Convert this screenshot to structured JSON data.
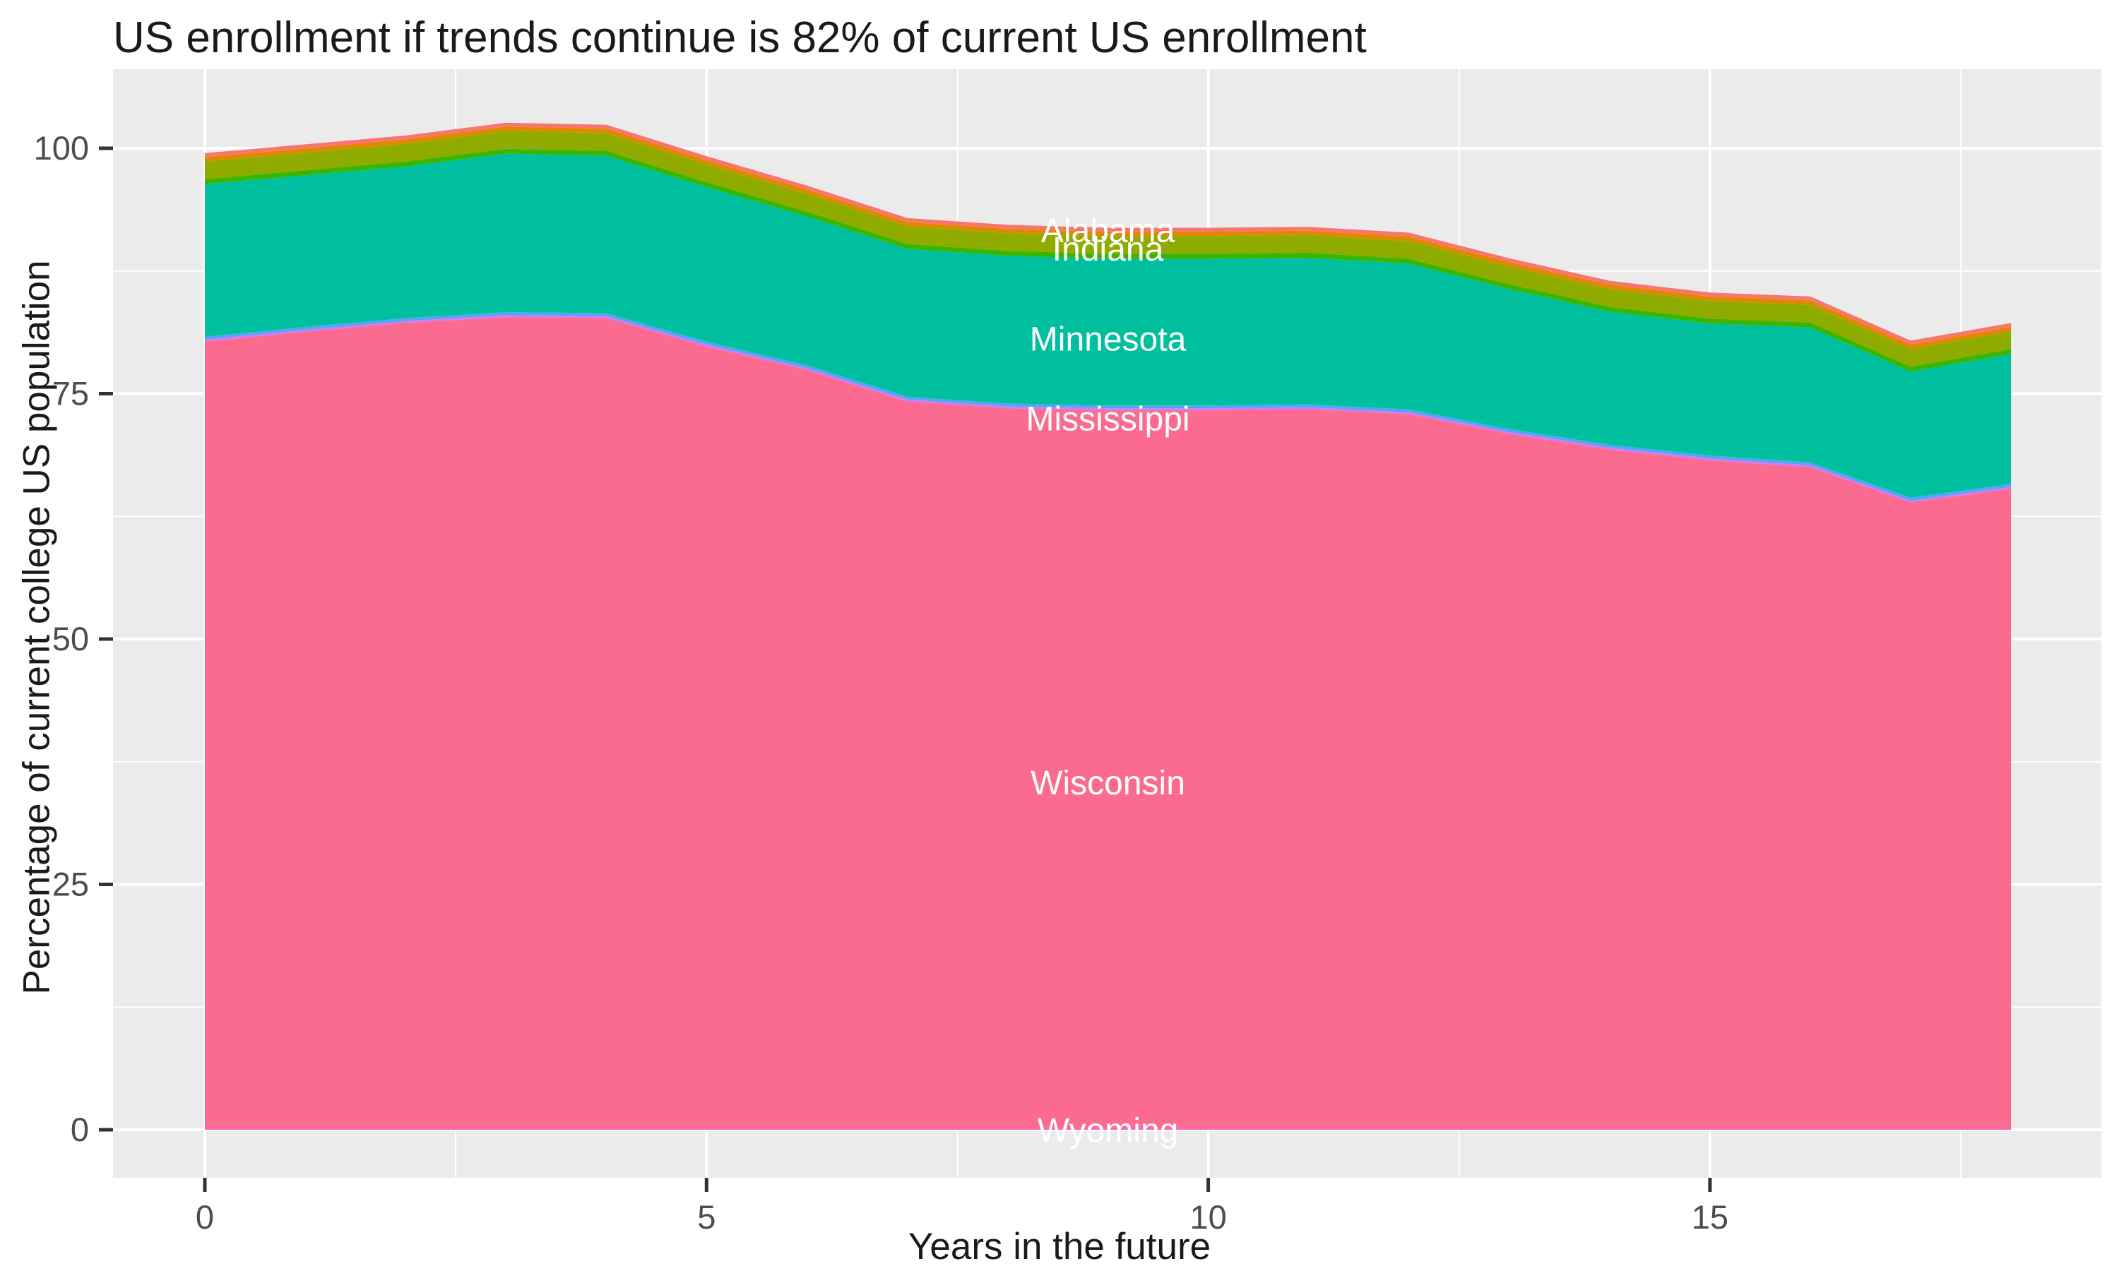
{
  "chart_data": {
    "type": "area",
    "stacked": true,
    "title": "US enrollment if trends continue is 82% of current US enrollment",
    "xlabel": "Years in the future",
    "ylabel": "Percentage of current college US population",
    "x": [
      0,
      1,
      2,
      3,
      4,
      5,
      6,
      7,
      8,
      9,
      10,
      11,
      12,
      13,
      14,
      15,
      16,
      17,
      18
    ],
    "xlim": [
      0,
      18
    ],
    "ylim": [
      0,
      100
    ],
    "x_ticks": [
      0,
      5,
      10,
      15
    ],
    "y_ticks": [
      0,
      25,
      50,
      75,
      100
    ],
    "x_minor_ticks": [
      2.5,
      7.5,
      12.5,
      17.5
    ],
    "y_minor_ticks": [
      12.5,
      37.5,
      62.5,
      87.5
    ],
    "grid": true,
    "legend": "none",
    "series": [
      {
        "name": "Wyoming",
        "color": "#FF63B6",
        "values": [
          0.15,
          0.15,
          0.15,
          0.15,
          0.15,
          0.15,
          0.15,
          0.15,
          0.15,
          0.15,
          0.15,
          0.15,
          0.15,
          0.15,
          0.15,
          0.15,
          0.15,
          0.15,
          0.15
        ]
      },
      {
        "name": "Wisconsin",
        "color": "#FB6B90",
        "values": [
          80.15,
          81.15,
          82.05,
          82.65,
          82.55,
          79.65,
          77.25,
          74.05,
          73.35,
          73.15,
          73.15,
          73.25,
          72.75,
          70.75,
          69.15,
          68.05,
          67.35,
          63.75,
          65.15
        ]
      },
      {
        "name": "",
        "color": "#D976F5",
        "values": [
          0.2,
          0.2,
          0.2,
          0.2,
          0.2,
          0.2,
          0.2,
          0.2,
          0.2,
          0.2,
          0.2,
          0.2,
          0.2,
          0.2,
          0.2,
          0.2,
          0.2,
          0.2,
          0.2
        ]
      },
      {
        "name": "Mississippi",
        "color": "#4FA9F2",
        "values": [
          0.3,
          0.3,
          0.3,
          0.3,
          0.3,
          0.3,
          0.3,
          0.3,
          0.3,
          0.3,
          0.3,
          0.3,
          0.3,
          0.3,
          0.3,
          0.3,
          0.3,
          0.3,
          0.3
        ]
      },
      {
        "name": "Minnesota",
        "color": "#00BF9F",
        "values": [
          15.55,
          15.45,
          15.45,
          16.15,
          16.05,
          15.75,
          15.15,
          15.05,
          15.05,
          14.95,
          14.95,
          14.95,
          14.85,
          14.25,
          13.55,
          13.45,
          13.75,
          12.85,
          13.25
        ]
      },
      {
        "name": "",
        "color": "#39B600",
        "values": [
          0.5,
          0.5,
          0.5,
          0.5,
          0.5,
          0.5,
          0.5,
          0.5,
          0.5,
          0.5,
          0.5,
          0.5,
          0.5,
          0.5,
          0.5,
          0.5,
          0.5,
          0.5,
          0.5
        ]
      },
      {
        "name": "Indiana",
        "color": "#8FAB00",
        "values": [
          1.8,
          1.8,
          1.8,
          1.8,
          1.8,
          1.8,
          1.8,
          1.8,
          1.8,
          1.8,
          1.8,
          1.8,
          1.8,
          1.8,
          1.8,
          1.8,
          1.8,
          1.8,
          1.8
        ]
      },
      {
        "name": "",
        "color": "#DE8A00",
        "values": [
          0.45,
          0.45,
          0.45,
          0.45,
          0.45,
          0.45,
          0.45,
          0.45,
          0.45,
          0.45,
          0.45,
          0.45,
          0.45,
          0.45,
          0.45,
          0.45,
          0.45,
          0.45,
          0.45
        ]
      },
      {
        "name": "Alabama",
        "color": "#F8766D",
        "values": [
          0.4,
          0.4,
          0.4,
          0.4,
          0.4,
          0.4,
          0.4,
          0.4,
          0.4,
          0.4,
          0.4,
          0.4,
          0.4,
          0.4,
          0.4,
          0.4,
          0.4,
          0.4,
          0.4
        ]
      }
    ],
    "area_labels": [
      {
        "text": "Alabama",
        "x": 9,
        "y": 91.7
      },
      {
        "text": "Indiana",
        "x": 9,
        "y": 89.8
      },
      {
        "text": "Minnesota",
        "x": 9,
        "y": 80.6
      },
      {
        "text": "Mississippi",
        "x": 9,
        "y": 72.5
      },
      {
        "text": "Wisconsin",
        "x": 9,
        "y": 35.4
      },
      {
        "text": "Wyoming",
        "x": 9,
        "y": 0.0
      }
    ],
    "colors": {
      "panel_background": "#EBEBEB",
      "grid_major": "#FFFFFF",
      "grid_minor": "#FFFFFF",
      "tick_text": "#4D4D4D",
      "tick_mark": "#333333",
      "title_text": "#1A1A1A",
      "area_label_text": "#FFFFFF"
    }
  }
}
